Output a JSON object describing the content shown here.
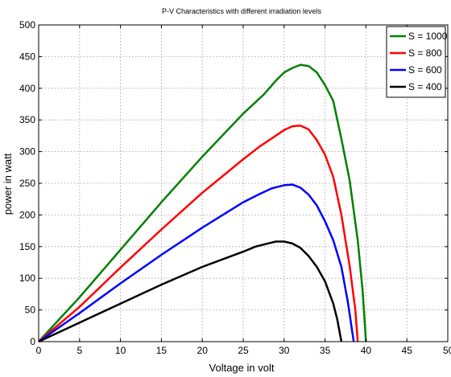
{
  "chart_data": {
    "type": "line",
    "title": "P-V Characteristics with different irradiation levels",
    "xlabel": "Voltage in volt",
    "ylabel": "power in watt",
    "xlim": [
      0,
      50
    ],
    "ylim": [
      0,
      500
    ],
    "xticks": [
      0,
      5,
      10,
      15,
      20,
      25,
      30,
      35,
      40,
      45,
      50
    ],
    "yticks": [
      0,
      50,
      100,
      150,
      200,
      250,
      300,
      350,
      400,
      450,
      500
    ],
    "grid": true,
    "legend_position": "top-right",
    "series": [
      {
        "name": "S = 1000",
        "color": "#008000",
        "points": [
          [
            0,
            0
          ],
          [
            5,
            70
          ],
          [
            10,
            145
          ],
          [
            15,
            220
          ],
          [
            20,
            292
          ],
          [
            25,
            360
          ],
          [
            27.5,
            390
          ],
          [
            29,
            412
          ],
          [
            30,
            425
          ],
          [
            31,
            432
          ],
          [
            32,
            437
          ],
          [
            33,
            435
          ],
          [
            34,
            425
          ],
          [
            35,
            405
          ],
          [
            36,
            380
          ],
          [
            37,
            320
          ],
          [
            38,
            255
          ],
          [
            39,
            160
          ],
          [
            39.6,
            80
          ],
          [
            40,
            0
          ]
        ]
      },
      {
        "name": "S = 800",
        "color": "#ff0000",
        "points": [
          [
            0,
            0
          ],
          [
            5,
            55
          ],
          [
            10,
            117
          ],
          [
            15,
            177
          ],
          [
            20,
            235
          ],
          [
            25,
            288
          ],
          [
            27,
            308
          ],
          [
            28.5,
            321
          ],
          [
            30,
            334
          ],
          [
            31,
            340
          ],
          [
            32,
            341
          ],
          [
            33,
            335
          ],
          [
            34,
            318
          ],
          [
            35,
            295
          ],
          [
            36,
            260
          ],
          [
            37,
            200
          ],
          [
            38,
            120
          ],
          [
            38.7,
            50
          ],
          [
            39,
            0
          ]
        ]
      },
      {
        "name": "S = 600",
        "color": "#0000ff",
        "points": [
          [
            0,
            0
          ],
          [
            5,
            45
          ],
          [
            10,
            92
          ],
          [
            15,
            137
          ],
          [
            20,
            180
          ],
          [
            25,
            220
          ],
          [
            27,
            233
          ],
          [
            28.5,
            242
          ],
          [
            30,
            247
          ],
          [
            31,
            248
          ],
          [
            32,
            243
          ],
          [
            33,
            232
          ],
          [
            34,
            215
          ],
          [
            35,
            190
          ],
          [
            36,
            160
          ],
          [
            37,
            118
          ],
          [
            37.8,
            62
          ],
          [
            38.5,
            0
          ]
        ]
      },
      {
        "name": "S = 400",
        "color": "#000000",
        "points": [
          [
            0,
            0
          ],
          [
            5,
            30
          ],
          [
            10,
            60
          ],
          [
            15,
            90
          ],
          [
            20,
            118
          ],
          [
            25,
            142
          ],
          [
            26.5,
            150
          ],
          [
            28,
            155
          ],
          [
            29,
            158
          ],
          [
            30,
            158
          ],
          [
            31,
            155
          ],
          [
            32,
            148
          ],
          [
            33,
            135
          ],
          [
            34,
            118
          ],
          [
            35,
            95
          ],
          [
            36,
            60
          ],
          [
            36.5,
            35
          ],
          [
            37,
            0
          ]
        ]
      }
    ]
  }
}
